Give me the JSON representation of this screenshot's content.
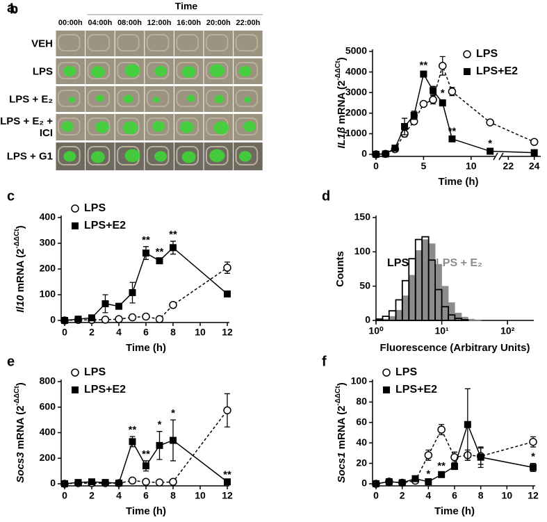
{
  "panel_a": {
    "panel": "a",
    "title": "Time",
    "times": [
      "00:00h",
      "04:00h",
      "08:00h",
      "12:00h",
      "16:00h",
      "20:00h",
      "22:00h"
    ],
    "rows": [
      "VEH",
      "LPS",
      "LPS + E₂",
      "LPS + E₂ + ICI",
      "LPS + G1"
    ]
  },
  "chart_data": [
    {
      "type": "line",
      "panel": "b",
      "ylabel": [
        {
          "text": "IL1β",
          "style": "italic"
        },
        {
          "text": " mRNA (2"
        },
        {
          "text": "-ΔΔCt",
          "style": "sup"
        },
        {
          "text": ")"
        }
      ],
      "xlabel": "Time (h)",
      "x": [
        0,
        1,
        2,
        3,
        4,
        5,
        6,
        7,
        8,
        12,
        24
      ],
      "xsegments": [
        {
          "xlim": [
            0,
            12.5
          ],
          "xticks": [
            0,
            5,
            10
          ]
        },
        {
          "xlim": [
            21.5,
            24.5
          ],
          "xticks": [
            22,
            24
          ]
        }
      ],
      "ylim": [
        0,
        5000
      ],
      "yticks": [
        0,
        1000,
        2000,
        3000,
        4000,
        5000
      ],
      "legend": "upper right",
      "series": [
        {
          "name": "LPS",
          "color": "#000000",
          "marker": "circle",
          "linestyle": "dashed",
          "values": [
            0,
            20,
            250,
            1000,
            1600,
            2450,
            2650,
            4300,
            3050,
            1550,
            600
          ],
          "errors": [
            0,
            10,
            50,
            150,
            100,
            100,
            200,
            450,
            200,
            50,
            50
          ]
        },
        {
          "name": "LPS+E2",
          "color": "#000000",
          "marker": "square",
          "linestyle": "solid",
          "values": [
            0,
            20,
            300,
            1350,
            1900,
            3900,
            3100,
            2500,
            750,
            150,
            80
          ],
          "errors": [
            0,
            10,
            50,
            400,
            200,
            100,
            200,
            150,
            50,
            50,
            30
          ],
          "annotations": [
            {
              "x": 5,
              "text": "**"
            },
            {
              "x": 7,
              "text": "*"
            },
            {
              "x": 8,
              "text": "**"
            },
            {
              "x": 12,
              "text": "*"
            }
          ]
        }
      ]
    },
    {
      "type": "line",
      "panel": "c",
      "ylabel": [
        {
          "text": "Il10",
          "style": "italic"
        },
        {
          "text": " mRNA (2"
        },
        {
          "text": "-ΔΔCt",
          "style": "sup"
        },
        {
          "text": ")"
        }
      ],
      "xlabel": "Time (h)",
      "x": [
        0,
        1,
        2,
        3,
        4,
        5,
        6,
        7,
        8,
        12
      ],
      "xlim": [
        0,
        12
      ],
      "xticks": [
        0,
        2,
        4,
        6,
        8,
        10,
        12
      ],
      "ylim": [
        0,
        400
      ],
      "yticks": [
        0,
        100,
        200,
        300,
        400
      ],
      "legend": "upper left",
      "series": [
        {
          "name": "LPS",
          "color": "#000000",
          "marker": "circle",
          "linestyle": "dashed",
          "values": [
            0,
            2,
            2,
            3,
            5,
            12,
            15,
            5,
            60,
            205
          ],
          "errors": [
            0,
            1,
            1,
            1,
            2,
            3,
            4,
            2,
            5,
            22
          ]
        },
        {
          "name": "LPS+E2",
          "color": "#000000",
          "marker": "square",
          "linestyle": "solid",
          "values": [
            0,
            5,
            10,
            65,
            55,
            108,
            262,
            232,
            283,
            103
          ],
          "errors": [
            0,
            3,
            5,
            35,
            10,
            40,
            25,
            8,
            25,
            5
          ],
          "annotations": [
            {
              "x": 6,
              "text": "**"
            },
            {
              "x": 7,
              "text": "**"
            },
            {
              "x": 8,
              "text": "**"
            }
          ]
        }
      ]
    },
    {
      "type": "histogram",
      "panel": "d",
      "ylabel": [
        {
          "text": "Counts"
        }
      ],
      "xlabel": "Fluorescence (Arbitrary Units)",
      "log_x": true,
      "bins": [
        1,
        1.26,
        1.58,
        2,
        2.51,
        3.16,
        3.98,
        5.01,
        6.31,
        7.94,
        10,
        12.6,
        15.8,
        20,
        25.1,
        31.6,
        39.8,
        50.1,
        63.1,
        79.4,
        100,
        126,
        158,
        200,
        251
      ],
      "xlim": [
        1,
        251
      ],
      "xticks": [
        {
          "value": 1,
          "label": "10⁰"
        },
        {
          "value": 10,
          "label": "10¹"
        },
        {
          "value": 100,
          "label": "10²"
        }
      ],
      "ylim": [
        0,
        150
      ],
      "yticks": [
        0,
        50,
        100,
        150
      ],
      "series": [
        {
          "name": "LPS",
          "color": "#000000",
          "style": "step",
          "values": [
            2,
            6,
            14,
            30,
            58,
            90,
            118,
            122,
            88,
            45,
            20,
            8,
            3,
            1,
            0,
            0,
            0,
            0,
            0,
            0,
            0,
            0,
            0,
            0
          ]
        },
        {
          "name": "LPS + E₂",
          "color": "#8c8c8c",
          "style": "filled",
          "values": [
            0,
            2,
            6,
            15,
            36,
            66,
            102,
            118,
            112,
            82,
            50,
            26,
            11,
            5,
            2,
            1,
            0,
            0,
            0,
            0,
            0,
            0,
            0,
            0
          ]
        }
      ]
    },
    {
      "type": "line",
      "panel": "e",
      "ylabel": [
        {
          "text": "Socs3",
          "style": "italic"
        },
        {
          "text": " mRNA (2"
        },
        {
          "text": "-ΔΔCt",
          "style": "sup"
        },
        {
          "text": ")"
        }
      ],
      "xlabel": "Time (h)",
      "x": [
        0,
        1,
        2,
        3,
        4,
        5,
        6,
        7,
        8,
        12
      ],
      "xlim": [
        0,
        12
      ],
      "xticks": [
        0,
        2,
        4,
        6,
        8,
        10,
        12
      ],
      "ylim": [
        0,
        800
      ],
      "yticks": [
        0,
        200,
        400,
        600,
        800
      ],
      "legend": "upper left",
      "series": [
        {
          "name": "LPS",
          "color": "#000000",
          "marker": "circle",
          "linestyle": "dashed",
          "values": [
            0,
            5,
            5,
            5,
            5,
            25,
            15,
            10,
            15,
            575
          ],
          "errors": [
            0,
            2,
            2,
            2,
            2,
            5,
            5,
            3,
            5,
            130
          ]
        },
        {
          "name": "LPS+E2",
          "color": "#000000",
          "marker": "square",
          "linestyle": "solid",
          "values": [
            0,
            10,
            15,
            10,
            5,
            330,
            140,
            300,
            340,
            15
          ],
          "errors": [
            0,
            3,
            5,
            3,
            2,
            40,
            40,
            110,
            160,
            5
          ],
          "annotations": [
            {
              "x": 5,
              "text": "**"
            },
            {
              "x": 6,
              "text": "**"
            },
            {
              "x": 7,
              "text": "*"
            },
            {
              "x": 8,
              "text": "*"
            },
            {
              "x": 12,
              "text": "**"
            }
          ]
        }
      ]
    },
    {
      "type": "line",
      "panel": "f",
      "ylabel": [
        {
          "text": "Socs1",
          "style": "italic"
        },
        {
          "text": " mRNA (2"
        },
        {
          "text": "-ΔΔCt",
          "style": "sup"
        },
        {
          "text": ")"
        }
      ],
      "xlabel": "Time (h)",
      "x": [
        0,
        1,
        2,
        3,
        4,
        5,
        6,
        7,
        8,
        12
      ],
      "xlim": [
        0,
        12
      ],
      "xticks": [
        0,
        2,
        4,
        6,
        8,
        10,
        12
      ],
      "ylim": [
        0,
        100
      ],
      "yticks": [
        0,
        20,
        40,
        60,
        80,
        100
      ],
      "legend": "upper left",
      "series": [
        {
          "name": "LPS",
          "color": "#000000",
          "marker": "circle",
          "linestyle": "dashed",
          "values": [
            0,
            2,
            1,
            3,
            28,
            53,
            26,
            28,
            27,
            41
          ],
          "errors": [
            1,
            1,
            1,
            2,
            5,
            5,
            5,
            5,
            8,
            5
          ]
        },
        {
          "name": "LPS+E2",
          "color": "#000000",
          "marker": "square",
          "linestyle": "solid",
          "values": [
            0,
            2,
            1,
            5,
            2,
            9,
            17,
            58,
            26,
            16
          ],
          "errors": [
            0,
            1,
            1,
            2,
            1,
            2,
            3,
            35,
            10,
            4
          ],
          "annotations": [
            {
              "x": 4,
              "text": "*"
            },
            {
              "x": 5,
              "text": "**"
            },
            {
              "x": 12,
              "text": "*"
            }
          ]
        }
      ]
    }
  ]
}
